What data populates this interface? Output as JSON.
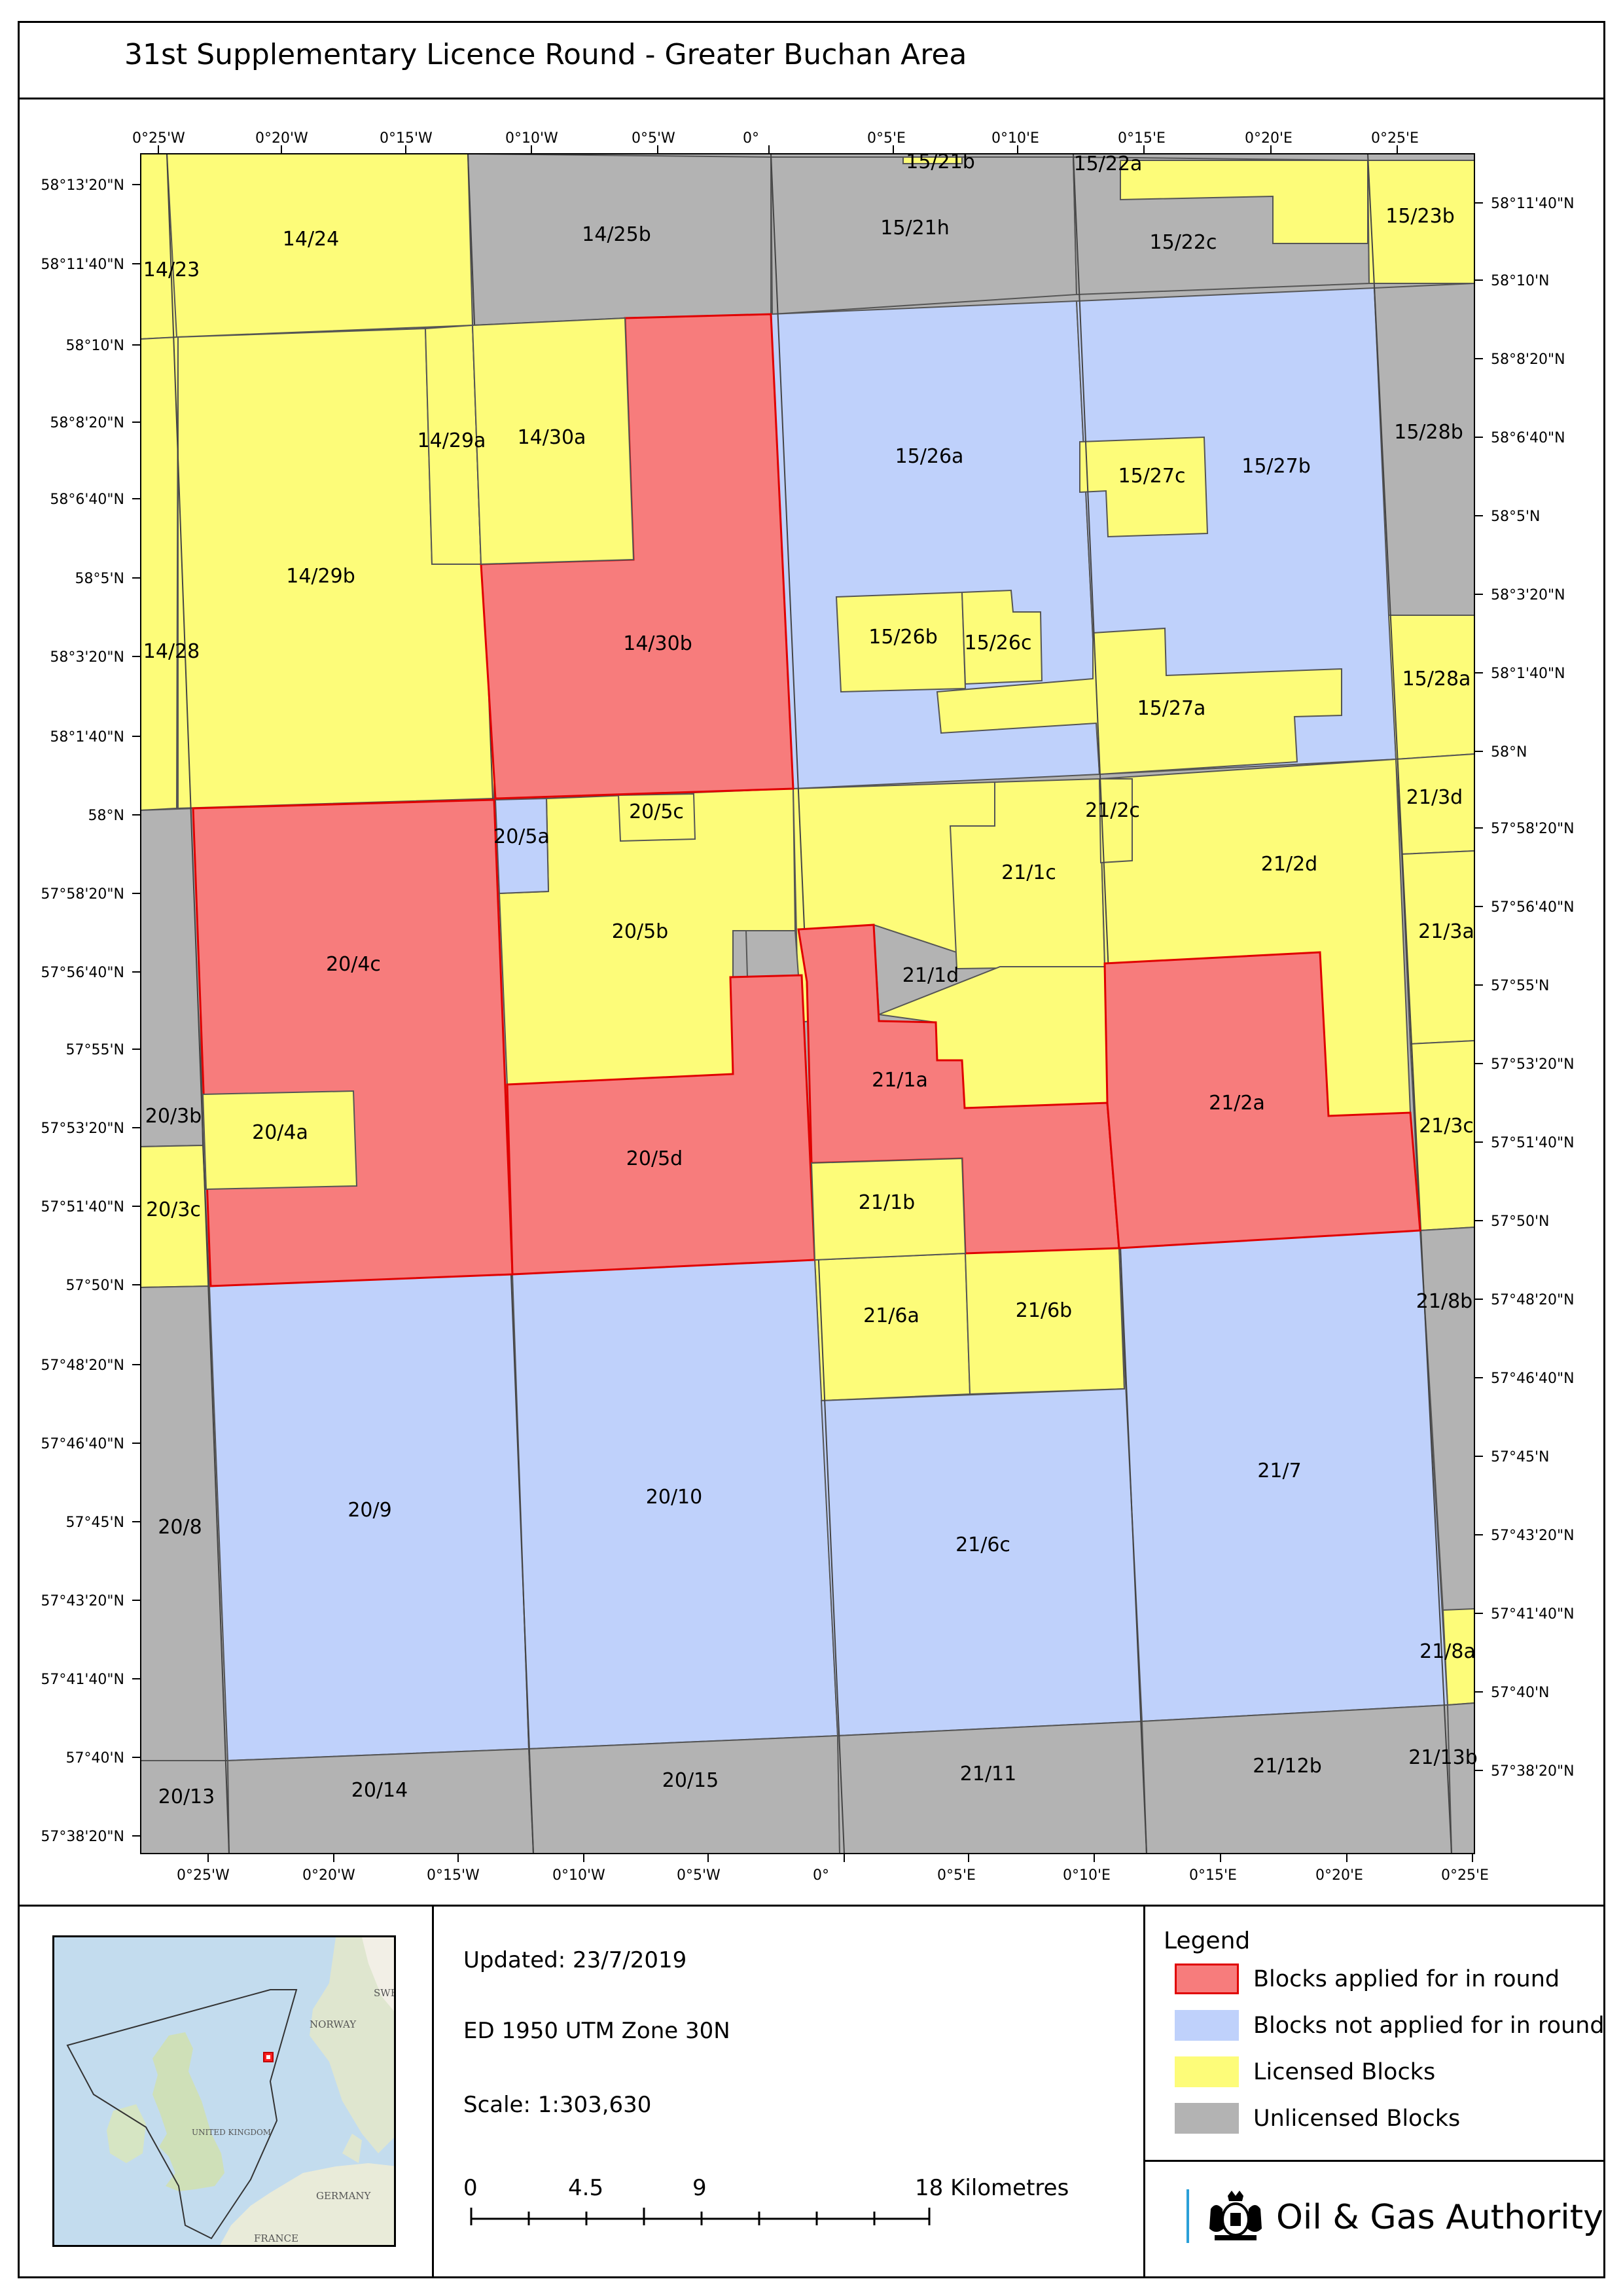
{
  "title": "31st Supplementary Licence Round - Greater Buchan Area",
  "colors": {
    "applied": "#f77c7c",
    "not_applied": "#bfd1fb",
    "licensed": "#fdfc79",
    "unlicensed": "#b3b3b3",
    "applied_border": "#e00000",
    "sea": "#c3dcee",
    "land": "#f2efe6",
    "land_green": "#d8e6c8"
  },
  "graticule": {
    "top_lon_labels": [
      "0°25'W",
      "0°20'W",
      "0°15'W",
      "0°10'W",
      "0°5'W",
      "0°",
      "0°5'E",
      "0°10'E",
      "0°15'E",
      "0°20'E",
      "0°25'E"
    ],
    "bottom_lon_labels": [
      "0°25'W",
      "0°20'W",
      "0°15'W",
      "0°10'W",
      "0°5'W",
      "0°",
      "0°5'E",
      "0°10'E",
      "0°15'E",
      "0°20'E",
      "0°25'E"
    ],
    "left_lat_labels": [
      "58°13'20\"N",
      "58°11'40\"N",
      "58°10'N",
      "58°8'20\"N",
      "58°6'40\"N",
      "58°5'N",
      "58°3'20\"N",
      "58°1'40\"N",
      "58°N",
      "57°58'20\"N",
      "57°56'40\"N",
      "57°55'N",
      "57°53'20\"N",
      "57°51'40\"N",
      "57°50'N",
      "57°48'20\"N",
      "57°46'40\"N",
      "57°45'N",
      "57°43'20\"N",
      "57°41'40\"N",
      "57°40'N",
      "57°38'20\"N"
    ],
    "right_lat_labels": [
      "58°11'40\"N",
      "58°10'N",
      "58°8'20\"N",
      "58°6'40\"N",
      "58°5'N",
      "58°3'20\"N",
      "58°1'40\"N",
      "58°N",
      "57°58'20\"N",
      "57°56'40\"N",
      "57°55'N",
      "57°53'20\"N",
      "57°51'40\"N",
      "57°50'N",
      "57°48'20\"N",
      "57°46'40\"N",
      "57°45'N",
      "57°43'20\"N",
      "57°41'40\"N",
      "57°40'N",
      "57°38'20\"N"
    ]
  },
  "blocks": [
    {
      "id": "14/24",
      "status": "licensed"
    },
    {
      "id": "14/23",
      "status": "licensed"
    },
    {
      "id": "14/25b",
      "status": "unlicensed"
    },
    {
      "id": "15/21b",
      "status": "licensed"
    },
    {
      "id": "15/21h",
      "status": "unlicensed"
    },
    {
      "id": "15/22a",
      "status": "licensed"
    },
    {
      "id": "15/22c",
      "status": "unlicensed"
    },
    {
      "id": "15/23b",
      "status": "licensed"
    },
    {
      "id": "14/29a",
      "status": "licensed"
    },
    {
      "id": "14/30a",
      "status": "licensed"
    },
    {
      "id": "14/29b",
      "status": "licensed"
    },
    {
      "id": "14/28",
      "status": "licensed"
    },
    {
      "id": "14/30b",
      "status": "applied"
    },
    {
      "id": "15/26a",
      "status": "not_applied"
    },
    {
      "id": "15/26b",
      "status": "licensed"
    },
    {
      "id": "15/26c",
      "status": "licensed"
    },
    {
      "id": "15/27a",
      "status": "licensed"
    },
    {
      "id": "15/27b",
      "status": "not_applied"
    },
    {
      "id": "15/27c",
      "status": "licensed"
    },
    {
      "id": "15/28b",
      "status": "unlicensed"
    },
    {
      "id": "15/28a",
      "status": "licensed"
    },
    {
      "id": "20/5a",
      "status": "not_applied"
    },
    {
      "id": "20/5c",
      "status": "licensed"
    },
    {
      "id": "20/5b",
      "status": "licensed"
    },
    {
      "id": "20/4c",
      "status": "applied"
    },
    {
      "id": "20/4a",
      "status": "licensed"
    },
    {
      "id": "20/3b",
      "status": "unlicensed"
    },
    {
      "id": "20/3c",
      "status": "licensed"
    },
    {
      "id": "20/5d",
      "status": "applied"
    },
    {
      "id": "21/2c",
      "status": "licensed"
    },
    {
      "id": "21/1c",
      "status": "licensed"
    },
    {
      "id": "21/2d",
      "status": "licensed"
    },
    {
      "id": "21/3d",
      "status": "licensed"
    },
    {
      "id": "21/3a",
      "status": "licensed"
    },
    {
      "id": "21/1d",
      "status": "licensed"
    },
    {
      "id": "21/1a",
      "status": "applied"
    },
    {
      "id": "21/2a",
      "status": "applied"
    },
    {
      "id": "21/3c",
      "status": "licensed"
    },
    {
      "id": "21/1b",
      "status": "licensed"
    },
    {
      "id": "21/6a",
      "status": "licensed"
    },
    {
      "id": "21/6b",
      "status": "licensed"
    },
    {
      "id": "21/8b",
      "status": "unlicensed"
    },
    {
      "id": "20/8",
      "status": "unlicensed"
    },
    {
      "id": "20/9",
      "status": "not_applied"
    },
    {
      "id": "20/10",
      "status": "not_applied"
    },
    {
      "id": "21/6c",
      "status": "not_applied"
    },
    {
      "id": "21/7",
      "status": "not_applied"
    },
    {
      "id": "21/8a",
      "status": "licensed"
    },
    {
      "id": "20/13",
      "status": "unlicensed"
    },
    {
      "id": "20/14",
      "status": "unlicensed"
    },
    {
      "id": "20/15",
      "status": "unlicensed"
    },
    {
      "id": "21/11",
      "status": "unlicensed"
    },
    {
      "id": "21/12b",
      "status": "unlicensed"
    },
    {
      "id": "21/13b",
      "status": "unlicensed"
    }
  ],
  "info": {
    "updated": "Updated: 23/7/2019",
    "datum": "ED 1950 UTM Zone 30N",
    "scale": "Scale: 1:303,630"
  },
  "scalebar": {
    "ticks": [
      "0",
      "4.5",
      "9",
      "18 Kilometres"
    ]
  },
  "legend": {
    "title": "Legend",
    "items": [
      {
        "label": "Blocks applied for in round",
        "status": "applied"
      },
      {
        "label": "Blocks not applied for in round",
        "status": "not_applied"
      },
      {
        "label": "Licensed Blocks",
        "status": "licensed"
      },
      {
        "label": "Unlicensed Blocks",
        "status": "unlicensed"
      }
    ]
  },
  "inset": {
    "labels": [
      "NORWAY",
      "SWE",
      "UNITED KINGDOM",
      "GERMANY",
      "FRANCE"
    ]
  },
  "branding": {
    "org": "Oil & Gas Authority"
  }
}
